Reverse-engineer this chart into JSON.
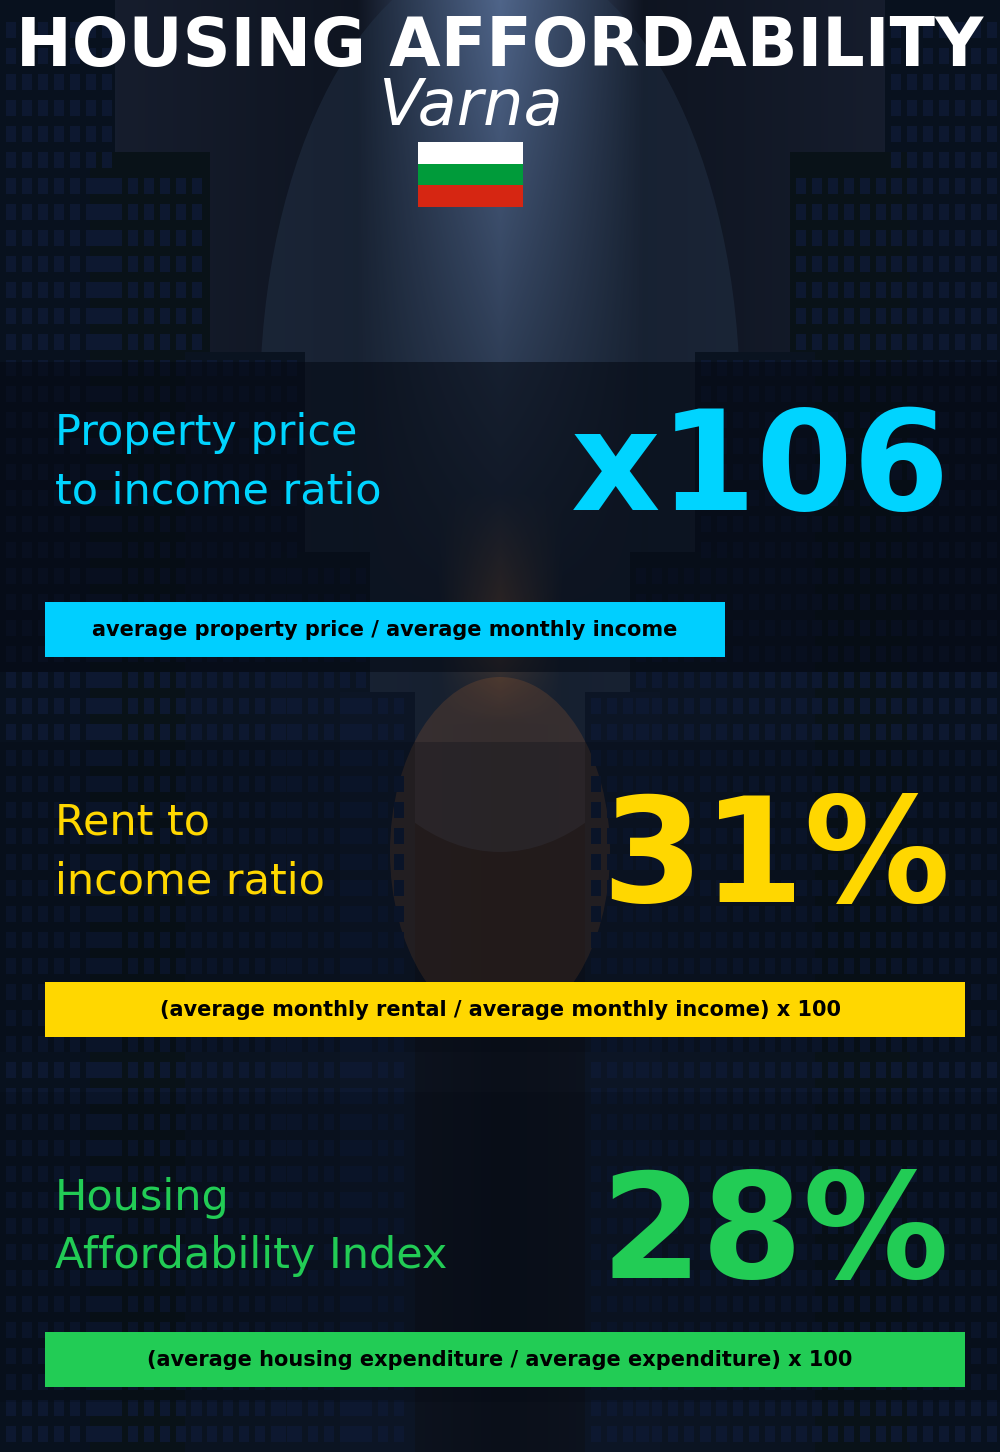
{
  "title_line1": "HOUSING AFFORDABILITY",
  "title_line2": "Varna",
  "bg_color": "#080d18",
  "section1_label": "Property price\nto income ratio",
  "section1_value": "x106",
  "section1_label_color": "#00d4ff",
  "section1_value_color": "#00d4ff",
  "section1_bar_text": "average property price / average monthly income",
  "section1_bar_bg": "#00cfff",
  "section1_bar_text_color": "#000000",
  "section2_label": "Rent to\nincome ratio",
  "section2_value": "31%",
  "section2_label_color": "#FFD700",
  "section2_value_color": "#FFD700",
  "section2_bar_text": "(average monthly rental / average monthly income) x 100",
  "section2_bar_bg": "#FFD700",
  "section2_bar_text_color": "#000000",
  "section3_label": "Housing\nAffordability Index",
  "section3_value": "28%",
  "section3_label_color": "#22cc55",
  "section3_value_color": "#22cc55",
  "section3_bar_text": "(average housing expenditure / average expenditure) x 100",
  "section3_bar_bg": "#22cc55",
  "section3_bar_text_color": "#000000",
  "flag_white": "#ffffff",
  "flag_green": "#009b3a",
  "flag_red": "#d62612",
  "figsize": [
    10.0,
    14.52
  ],
  "dpi": 100
}
